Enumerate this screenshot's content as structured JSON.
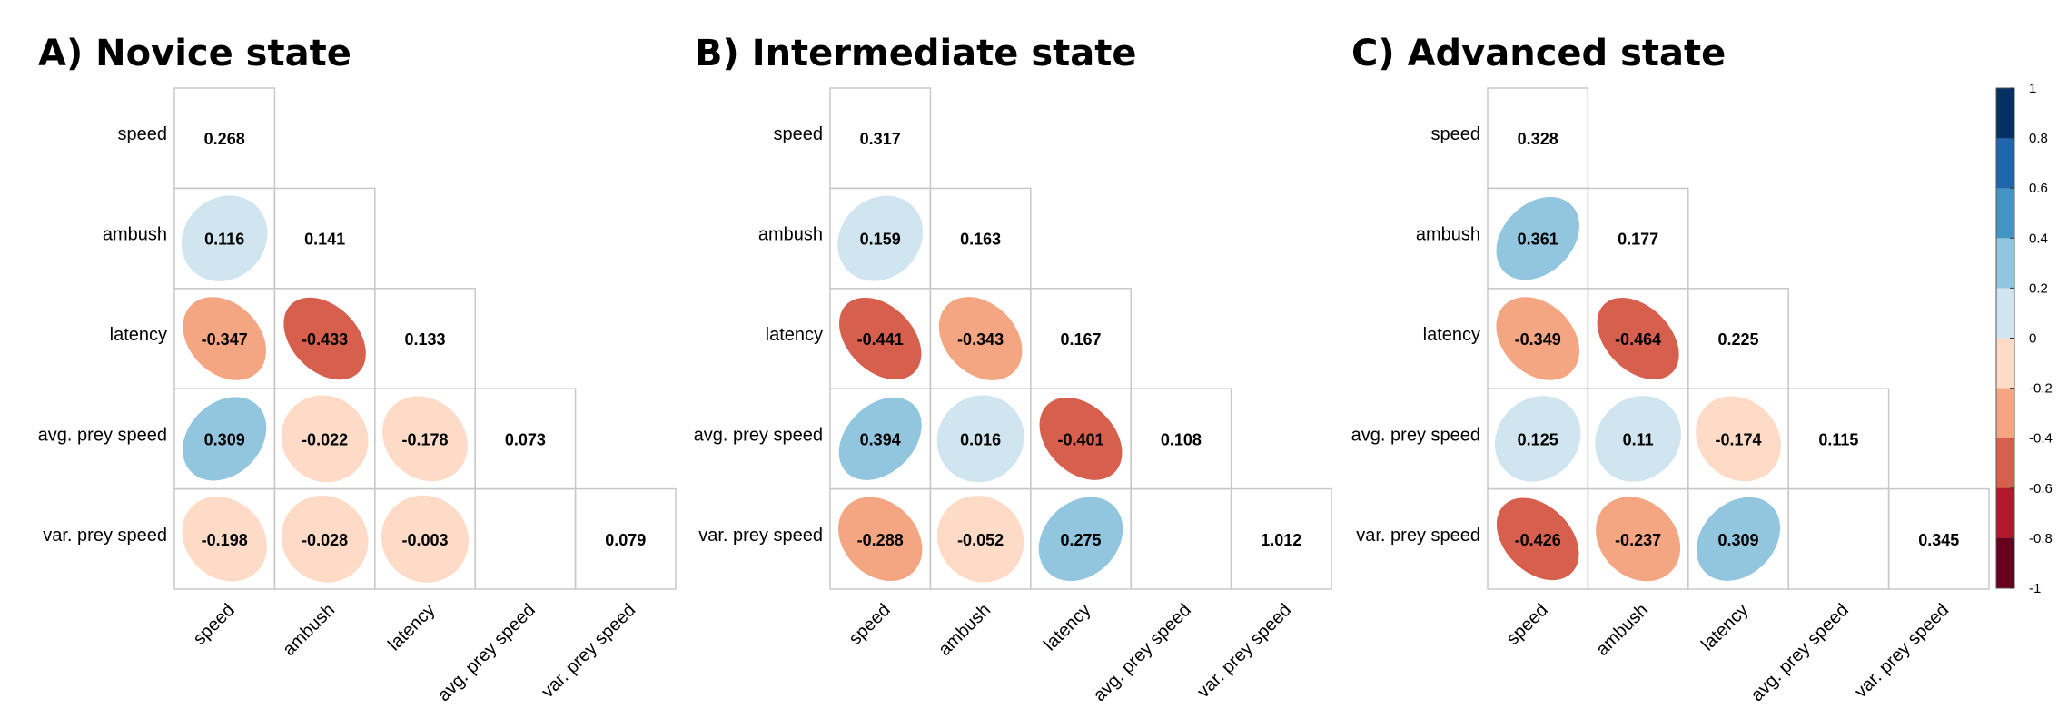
{
  "chart_data": [
    {
      "type": "heatmap",
      "title": "A) Novice state",
      "variables": [
        "speed",
        "ambush",
        "latency",
        "avg. prey speed",
        "var. prey speed"
      ],
      "matrix": [
        [
          0.268,
          null,
          null,
          null,
          null
        ],
        [
          0.116,
          0.141,
          null,
          null,
          null
        ],
        [
          -0.347,
          -0.433,
          0.133,
          null,
          null
        ],
        [
          0.309,
          -0.022,
          -0.178,
          0.073,
          null
        ],
        [
          -0.198,
          -0.028,
          -0.003,
          null,
          0.079
        ]
      ]
    },
    {
      "type": "heatmap",
      "title": "B) Intermediate state",
      "variables": [
        "speed",
        "ambush",
        "latency",
        "avg. prey speed",
        "var. prey speed"
      ],
      "matrix": [
        [
          0.317,
          null,
          null,
          null,
          null
        ],
        [
          0.159,
          0.163,
          null,
          null,
          null
        ],
        [
          -0.441,
          -0.343,
          0.167,
          null,
          null
        ],
        [
          0.394,
          0.016,
          -0.401,
          0.108,
          null
        ],
        [
          -0.288,
          -0.052,
          0.275,
          null,
          1.012
        ]
      ]
    },
    {
      "type": "heatmap",
      "title": "C) Advanced state",
      "variables": [
        "speed",
        "ambush",
        "latency",
        "avg. prey speed",
        "var. prey speed"
      ],
      "matrix": [
        [
          0.328,
          null,
          null,
          null,
          null
        ],
        [
          0.361,
          0.177,
          null,
          null,
          null
        ],
        [
          -0.349,
          -0.464,
          0.225,
          null,
          null
        ],
        [
          0.125,
          0.11,
          -0.174,
          0.115,
          null
        ],
        [
          -0.426,
          -0.237,
          0.309,
          null,
          0.345
        ]
      ]
    }
  ],
  "colorbar": {
    "ticks": [
      "1",
      "0.8",
      "0.6",
      "0.4",
      "0.2",
      "0",
      "-0.2",
      "-0.4",
      "-0.6",
      "-0.8",
      "-1"
    ],
    "colors": [
      "#053061",
      "#2166ac",
      "#4393c3",
      "#92c5de",
      "#d1e5f0",
      "#fddbc7",
      "#f4a582",
      "#d6604d",
      "#b2182b",
      "#67001f"
    ]
  }
}
